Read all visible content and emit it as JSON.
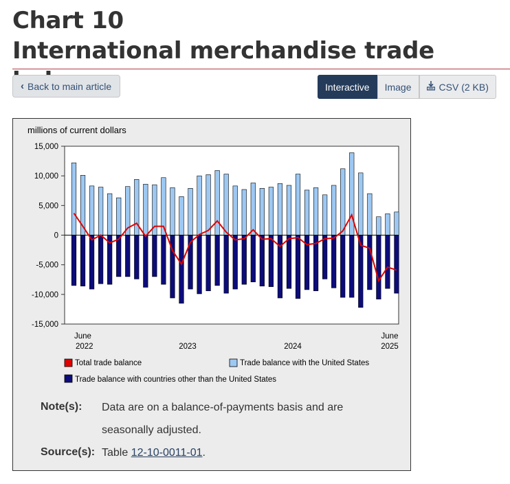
{
  "page": {
    "title_line1": "Chart 10",
    "title_line2": "International merchandise trade balance"
  },
  "toolbar": {
    "back_label": "Back to main article",
    "views": [
      "Interactive",
      "Image"
    ],
    "csv_label": "CSV (2 KB)"
  },
  "chart_data": {
    "type": "bar",
    "unit_label": "millions of current dollars",
    "ylim": [
      -15000,
      15000
    ],
    "yticks": [
      15000,
      10000,
      5000,
      0,
      -5000,
      -10000,
      -15000
    ],
    "ytick_labels": [
      "15,000",
      "10,000",
      "5,000",
      "0",
      "-5,000",
      "-10,000",
      "-15,000"
    ],
    "x_tick_labels": [
      {
        "line1": "June",
        "line2": "2022"
      },
      {
        "line1": "",
        "line2": "2023"
      },
      {
        "line1": "",
        "line2": "2024"
      },
      {
        "line1": "June",
        "line2": "2025"
      }
    ],
    "categories": [
      "2022-06",
      "2022-07",
      "2022-08",
      "2022-09",
      "2022-10",
      "2022-11",
      "2022-12",
      "2023-01",
      "2023-02",
      "2023-03",
      "2023-04",
      "2023-05",
      "2023-06",
      "2023-07",
      "2023-08",
      "2023-09",
      "2023-10",
      "2023-11",
      "2023-12",
      "2024-01",
      "2024-02",
      "2024-03",
      "2024-04",
      "2024-05",
      "2024-06",
      "2024-07",
      "2024-08",
      "2024-09",
      "2024-10",
      "2024-11",
      "2024-12",
      "2025-01",
      "2025-02",
      "2025-03",
      "2025-04",
      "2025-05",
      "2025-06"
    ],
    "series": [
      {
        "name": "Trade balance with the United States",
        "kind": "bar",
        "color": "#9dc8f2",
        "values": [
          12200,
          10100,
          8300,
          8100,
          7000,
          6300,
          8200,
          9400,
          8600,
          8500,
          9700,
          8000,
          6500,
          7900,
          10000,
          10200,
          10900,
          10300,
          8300,
          7700,
          8800,
          7900,
          8100,
          8700,
          8400,
          10300,
          7600,
          8000,
          6800,
          8400,
          11200,
          13900,
          10500,
          7000,
          3100,
          3600,
          3900
        ]
      },
      {
        "name": "Trade balance with countries other than the United States",
        "kind": "bar",
        "color": "#0c0c7a",
        "values": [
          -8500,
          -8600,
          -9100,
          -8200,
          -8300,
          -7000,
          -7000,
          -7400,
          -8800,
          -7000,
          -8300,
          -10600,
          -11500,
          -9100,
          -9900,
          -9400,
          -8500,
          -9800,
          -9100,
          -8300,
          -7900,
          -8600,
          -8700,
          -10600,
          -9000,
          -10700,
          -9200,
          -9400,
          -7400,
          -8900,
          -10500,
          -10500,
          -12200,
          -9200,
          -10800,
          -9000,
          -9800
        ]
      },
      {
        "name": "Total trade balance",
        "kind": "line",
        "color": "#e00000",
        "values": [
          3700,
          1500,
          -800,
          0,
          -1300,
          -700,
          1200,
          2000,
          -200,
          1500,
          1500,
          -2600,
          -4900,
          -1200,
          100,
          800,
          2400,
          500,
          -800,
          -600,
          900,
          -700,
          -600,
          -1900,
          -600,
          -400,
          -1600,
          -1400,
          -600,
          -500,
          700,
          3400,
          -1700,
          -2200,
          -7700,
          -5400,
          -5900
        ]
      }
    ]
  },
  "legend": {
    "total": "Total trade balance",
    "us": "Trade balance with the United States",
    "other": "Trade balance with countries other than the United States"
  },
  "notes": {
    "note_label": "Note(s):",
    "note_line1": "Data are on a balance-of-payments basis and are",
    "note_line2": "seasonally adjusted.",
    "source_label": "Source(s):",
    "source_prefix": "Table ",
    "source_link": "12-10-0011-01",
    "source_suffix": "."
  }
}
